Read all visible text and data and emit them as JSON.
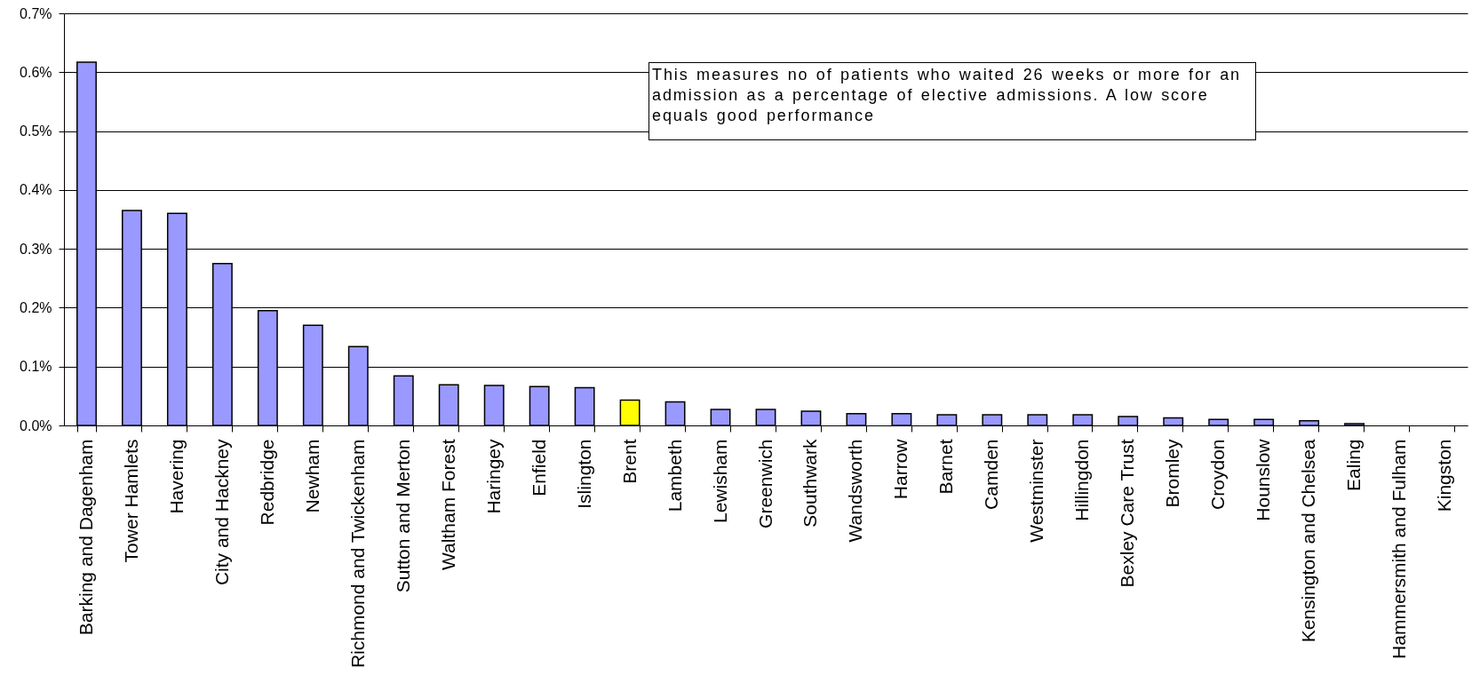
{
  "chart_data": {
    "type": "bar",
    "categories": [
      "Barking and Dagenham",
      "Tower Hamlets",
      "Havering",
      "City and Hackney",
      "Redbridge",
      "Newham",
      "Richmond and Twickenham",
      "Sutton and Merton",
      "Waltham Forest",
      "Haringey",
      "Enfield",
      "Islington",
      "Brent",
      "Lambeth",
      "Lewisham",
      "Greenwich",
      "Southwark",
      "Wandsworth",
      "Harrow",
      "Barnet",
      "Camden",
      "Westminster",
      "Hillingdon",
      "Bexley Care Trust",
      "Bromley",
      "Croydon",
      "Hounslow",
      "Kensington and Chelsea",
      "Ealing",
      "Hammersmith and Fulham",
      "Kingston"
    ],
    "values": [
      0.617,
      0.365,
      0.36,
      0.275,
      0.195,
      0.17,
      0.134,
      0.084,
      0.069,
      0.068,
      0.066,
      0.064,
      0.043,
      0.04,
      0.027,
      0.027,
      0.024,
      0.02,
      0.02,
      0.018,
      0.018,
      0.018,
      0.018,
      0.015,
      0.013,
      0.01,
      0.01,
      0.008,
      0.003,
      null,
      null
    ],
    "colors": [
      "#9999ff",
      "#9999ff",
      "#9999ff",
      "#9999ff",
      "#9999ff",
      "#9999ff",
      "#9999ff",
      "#9999ff",
      "#9999ff",
      "#9999ff",
      "#9999ff",
      "#9999ff",
      "#ffff00",
      "#9999ff",
      "#9999ff",
      "#9999ff",
      "#9999ff",
      "#9999ff",
      "#9999ff",
      "#9999ff",
      "#9999ff",
      "#9999ff",
      "#9999ff",
      "#9999ff",
      "#9999ff",
      "#9999ff",
      "#9999ff",
      "#9999ff",
      "#9999ff",
      "#9999ff",
      "#9999ff"
    ],
    "ylim": [
      0,
      0.7
    ],
    "yticks": [
      {
        "value": 0,
        "label": "0.0%"
      },
      {
        "value": 0.1,
        "label": "0.1%"
      },
      {
        "value": 0.2,
        "label": "0.2%"
      },
      {
        "value": 0.3,
        "label": "0.3%"
      },
      {
        "value": 0.4,
        "label": "0.4%"
      },
      {
        "value": 0.5,
        "label": "0.5%"
      },
      {
        "value": 0.6,
        "label": "0.6%"
      },
      {
        "value": 0.7,
        "label": "0.7%"
      }
    ],
    "grid": "y",
    "annotations": [
      "This measures no of patients who waited 26 weeks or more for an admission as a percentage of elective admissions. A low score equals good performance"
    ]
  }
}
